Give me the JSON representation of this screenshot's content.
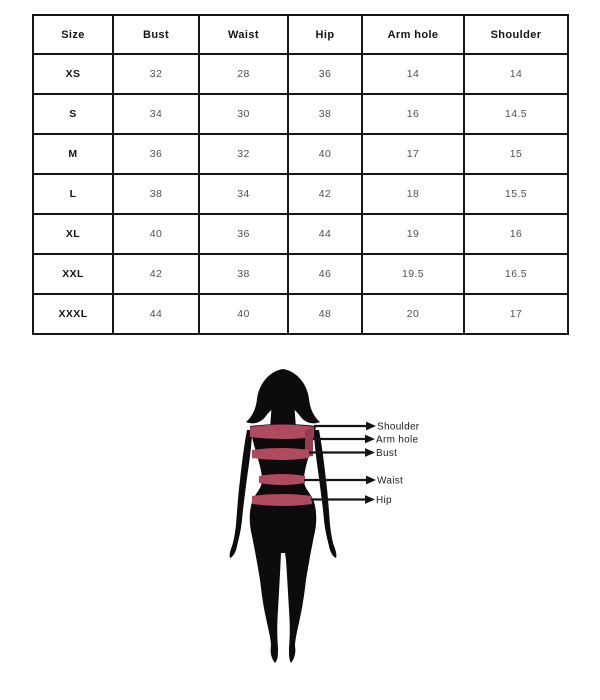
{
  "table": {
    "columns": [
      "Size",
      "Bust",
      "Waist",
      "Hip",
      "Arm hole",
      "Shoulder"
    ],
    "rows": [
      [
        "XS",
        "32",
        "28",
        "36",
        "14",
        "14"
      ],
      [
        "S",
        "34",
        "30",
        "38",
        "16",
        "14.5"
      ],
      [
        "M",
        "36",
        "32",
        "40",
        "17",
        "15"
      ],
      [
        "L",
        "38",
        "34",
        "42",
        "18",
        "15.5"
      ],
      [
        "XL",
        "40",
        "36",
        "44",
        "19",
        "16"
      ],
      [
        "XXL",
        "42",
        "38",
        "46",
        "19.5",
        "16.5"
      ],
      [
        "XXXL",
        "44",
        "40",
        "48",
        "20",
        "17"
      ]
    ]
  },
  "figure": {
    "labels": [
      {
        "text": "Shoulder"
      },
      {
        "text": "Arm hole"
      },
      {
        "text": "Bust"
      },
      {
        "text": "Waist"
      },
      {
        "text": "Hip"
      }
    ],
    "colors": {
      "silhouette": "#0d0b0c",
      "band": "#b04a5e",
      "band_dark": "#963c4e",
      "arrow": "#141414"
    }
  }
}
